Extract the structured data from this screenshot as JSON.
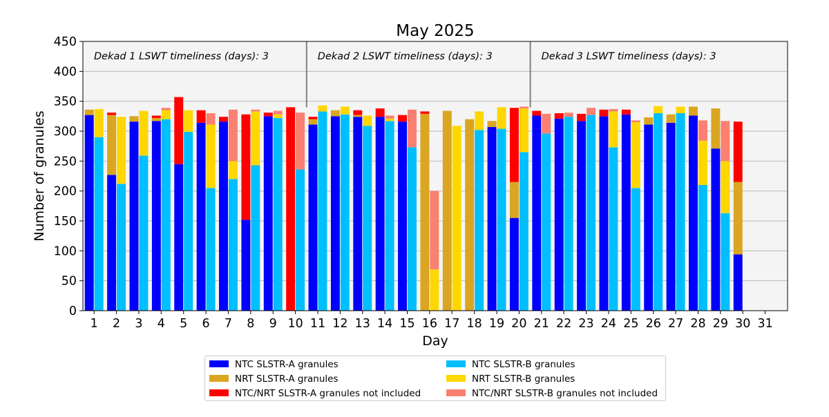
{
  "chart_data": {
    "type": "bar",
    "title": "May 2025",
    "xlabel": "Day",
    "ylabel": "Number of granules",
    "ylim": [
      0,
      450
    ],
    "yticks": [
      0,
      50,
      100,
      150,
      200,
      250,
      300,
      350,
      400,
      450
    ],
    "grid": true,
    "legend_position": "bottom",
    "categories": [
      "1",
      "2",
      "3",
      "4",
      "5",
      "6",
      "7",
      "8",
      "9",
      "10",
      "11",
      "12",
      "13",
      "14",
      "15",
      "16",
      "17",
      "18",
      "19",
      "20",
      "21",
      "22",
      "23",
      "24",
      "25",
      "26",
      "27",
      "28",
      "29",
      "30",
      "31"
    ],
    "colors": {
      "ntc_a": "#0000ff",
      "nrt_a": "#daa520",
      "not_a": "#ff0000",
      "ntc_b": "#00bfff",
      "nrt_b": "#ffd700",
      "not_b": "#fa8072",
      "bg": "#f4f4f4",
      "grid": "#b8b8b8"
    },
    "annotations": [
      "Dekad 1 LSWT timeliness (days): 3",
      "Dekad 2 LSWT timeliness (days): 3",
      "Dekad 3 LSWT timeliness (days): 3"
    ],
    "dekad_boundaries": [
      10.5,
      20.5
    ],
    "series": [
      {
        "name": "NTC SLSTR-A granules",
        "group": "A",
        "key": "ntc_a",
        "values": [
          327,
          227,
          316,
          317,
          245,
          314,
          316,
          152,
          325,
          0,
          311,
          325,
          324,
          324,
          316,
          0,
          0,
          0,
          307,
          155,
          326,
          321,
          317,
          325,
          328,
          311,
          314,
          326,
          271,
          94,
          0
        ]
      },
      {
        "name": "NRT SLSTR-A granules",
        "group": "A",
        "key": "nrt_a",
        "values": [
          9,
          100,
          9,
          5,
          0,
          0,
          0,
          0,
          0,
          0,
          9,
          10,
          3,
          0,
          0,
          329,
          334,
          320,
          10,
          60,
          0,
          0,
          0,
          0,
          0,
          12,
          14,
          15,
          67,
          121,
          0
        ]
      },
      {
        "name": "NTC/NRT SLSTR-A granules not included",
        "group": "A",
        "key": "not_a",
        "values": [
          0,
          4,
          0,
          4,
          112,
          21,
          8,
          176,
          6,
          340,
          4,
          0,
          8,
          14,
          11,
          4,
          0,
          0,
          0,
          124,
          8,
          9,
          12,
          11,
          8,
          0,
          0,
          0,
          0,
          101,
          0
        ]
      },
      {
        "name": "NTC SLSTR-B granules",
        "group": "B",
        "key": "ntc_b",
        "values": [
          290,
          212,
          259,
          320,
          299,
          205,
          220,
          243,
          322,
          236,
          333,
          328,
          309,
          317,
          273,
          0,
          0,
          302,
          304,
          265,
          296,
          324,
          327,
          273,
          205,
          330,
          330,
          210,
          163,
          0,
          0
        ]
      },
      {
        "name": "NRT SLSTR-B granules",
        "group": "B",
        "key": "nrt_b",
        "values": [
          47,
          112,
          75,
          15,
          36,
          106,
          30,
          90,
          6,
          0,
          10,
          13,
          17,
          4,
          0,
          69,
          309,
          31,
          36,
          73,
          0,
          0,
          0,
          60,
          110,
          12,
          11,
          74,
          87,
          0,
          0
        ]
      },
      {
        "name": "NTC/NRT SLSTR-B granules not included",
        "group": "B",
        "key": "not_b",
        "values": [
          0,
          0,
          0,
          4,
          0,
          19,
          86,
          3,
          6,
          95,
          0,
          0,
          0,
          5,
          63,
          131,
          0,
          0,
          0,
          3,
          33,
          7,
          12,
          4,
          3,
          0,
          0,
          34,
          67,
          0,
          0
        ]
      }
    ]
  }
}
